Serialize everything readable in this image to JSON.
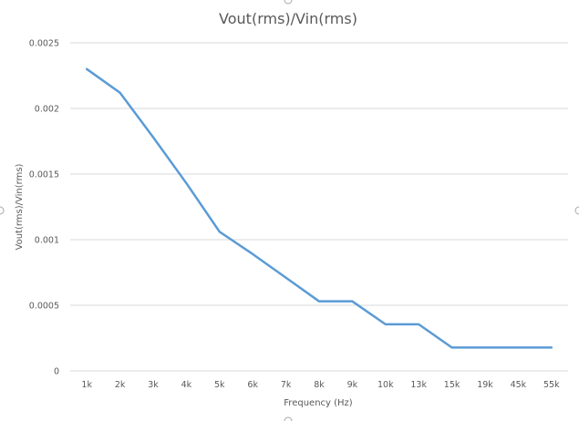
{
  "chart_data": {
    "type": "line",
    "title": "Vout(rms)/Vin(rms)",
    "xlabel": "Frequency (Hz)",
    "ylabel": "Vout(rms)/Vin(rms)",
    "categories": [
      "1k",
      "2k",
      "3k",
      "4k",
      "5k",
      "6k",
      "7k",
      "8k",
      "9k",
      "10k",
      "13k",
      "15k",
      "19k",
      "45k",
      "55k"
    ],
    "y_ticks": [
      "0",
      "0.0005",
      "0.001",
      "0.0015",
      "0.002",
      "0.0025"
    ],
    "ylim": [
      0,
      0.0025
    ],
    "grid": true,
    "legend": "none",
    "series": [
      {
        "values": [
          0.0023,
          0.00212,
          0.00178,
          0.00143,
          0.00106,
          0.00089,
          0.00071,
          0.00053,
          0.00053,
          0.000355,
          0.000355,
          0.000178,
          0.000178,
          0.000178,
          0.000178
        ],
        "color": "#5b9bd5"
      }
    ]
  }
}
